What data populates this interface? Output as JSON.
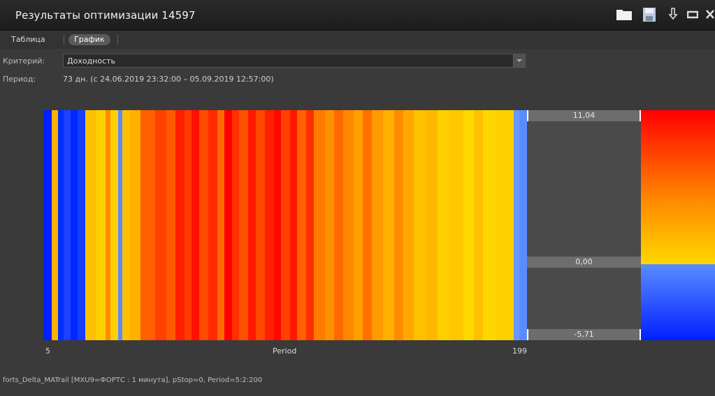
{
  "window": {
    "title": "Результаты оптимизации 14597"
  },
  "icons": [
    "folder-icon",
    "save-icon",
    "download-icon",
    "minimize-icon",
    "close-icon"
  ],
  "tabs": [
    {
      "label": "Таблица",
      "active": false
    },
    {
      "label": "График",
      "active": true
    }
  ],
  "criterion": {
    "label": "Критерий:",
    "value": "Доходность"
  },
  "period": {
    "label": "Период:",
    "value": "73 дн. (с 24.06.2019 23:32:00 – 05.09.2019 12:57:00)"
  },
  "chart_data": {
    "type": "heatmap",
    "xlabel": "Period",
    "x_range": [
      5,
      199
    ],
    "x_ticks": [
      "5",
      "199"
    ],
    "scale": {
      "max": "11,04",
      "mid": "0,00",
      "min": "-5,71"
    },
    "colors": {
      "high": "#ff0000",
      "mid_high": "#ff8c00",
      "zero": "#ffd700",
      "zero_neg": "#5a8cff",
      "low": "#0020ff"
    }
  },
  "footer": "forts_Delta_MATrail [MXU9=ФОРТС : 1 минута], pStop=0, Period=5:2:200"
}
